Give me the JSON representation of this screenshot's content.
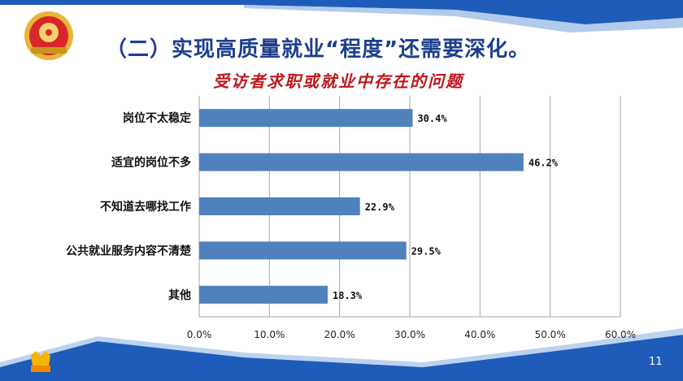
{
  "slide": {
    "title": "（二）实现高质量就业“程度”还需要深化。",
    "subtitle": "受访者求职或就业中存在的问题",
    "page_number": "11"
  },
  "colors": {
    "bar": "#4f81bd",
    "title": "#1d3f8c",
    "subtitle": "#c0161c",
    "banner": "#1f5bb8"
  },
  "chart_data": {
    "type": "bar",
    "orientation": "horizontal",
    "categories": [
      "岗位不太稳定",
      "适宜的岗位不多",
      "不知道去哪找工作",
      "公共就业服务内容不清楚",
      "其他"
    ],
    "values": [
      30.4,
      46.2,
      22.9,
      29.5,
      18.3
    ],
    "value_labels": [
      "30.4%",
      "46.2%",
      "22.9%",
      "29.5%",
      "18.3%"
    ],
    "xlim": [
      0,
      60
    ],
    "x_ticks": [
      0,
      10,
      20,
      30,
      40,
      50,
      60
    ],
    "x_tick_labels": [
      "0.0%",
      "10.0%",
      "20.0%",
      "30.0%",
      "40.0%",
      "50.0%",
      "60.0%"
    ],
    "grid": true
  }
}
